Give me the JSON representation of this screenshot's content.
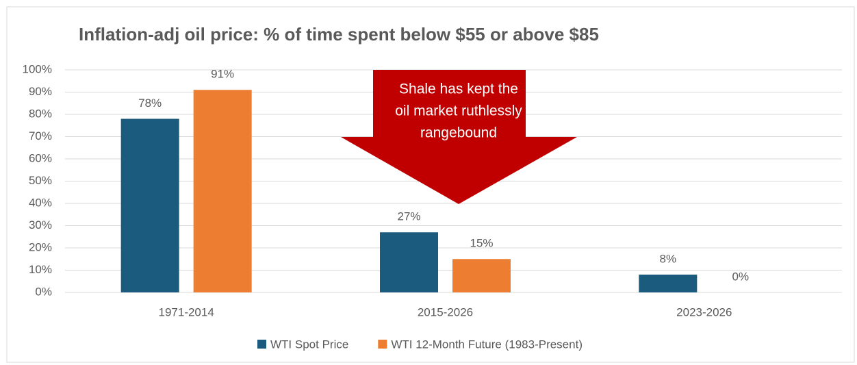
{
  "chart_data": {
    "type": "bar",
    "title": "Inflation-adj oil price: % of time spent below $55 or above $85",
    "categories": [
      "1971-2014",
      "2015-2026",
      "2023-2026"
    ],
    "series": [
      {
        "name": "WTI Spot Price",
        "color": "#1b5b7e",
        "values": [
          78,
          27,
          8
        ],
        "value_labels": [
          "78%",
          "27%",
          "8%"
        ]
      },
      {
        "name": "WTI 12-Month Future (1983-Present)",
        "color": "#ed7d31",
        "values": [
          91,
          15,
          0
        ],
        "value_labels": [
          "91%",
          "15%",
          "0%"
        ]
      }
    ],
    "ylim": [
      0,
      100
    ],
    "yticks": [
      {
        "value": 0,
        "label": "0%"
      },
      {
        "value": 10,
        "label": "10%"
      },
      {
        "value": 20,
        "label": "20%"
      },
      {
        "value": 30,
        "label": "30%"
      },
      {
        "value": 40,
        "label": "40%"
      },
      {
        "value": 50,
        "label": "50%"
      },
      {
        "value": 60,
        "label": "60%"
      },
      {
        "value": 70,
        "label": "70%"
      },
      {
        "value": 80,
        "label": "80%"
      },
      {
        "value": 90,
        "label": "90%"
      },
      {
        "value": 100,
        "label": "100%"
      }
    ],
    "grid": true,
    "legend": "bottom",
    "annotation": [
      "Shale has kept the",
      "oil market ruthlessly",
      "rangebound"
    ]
  }
}
